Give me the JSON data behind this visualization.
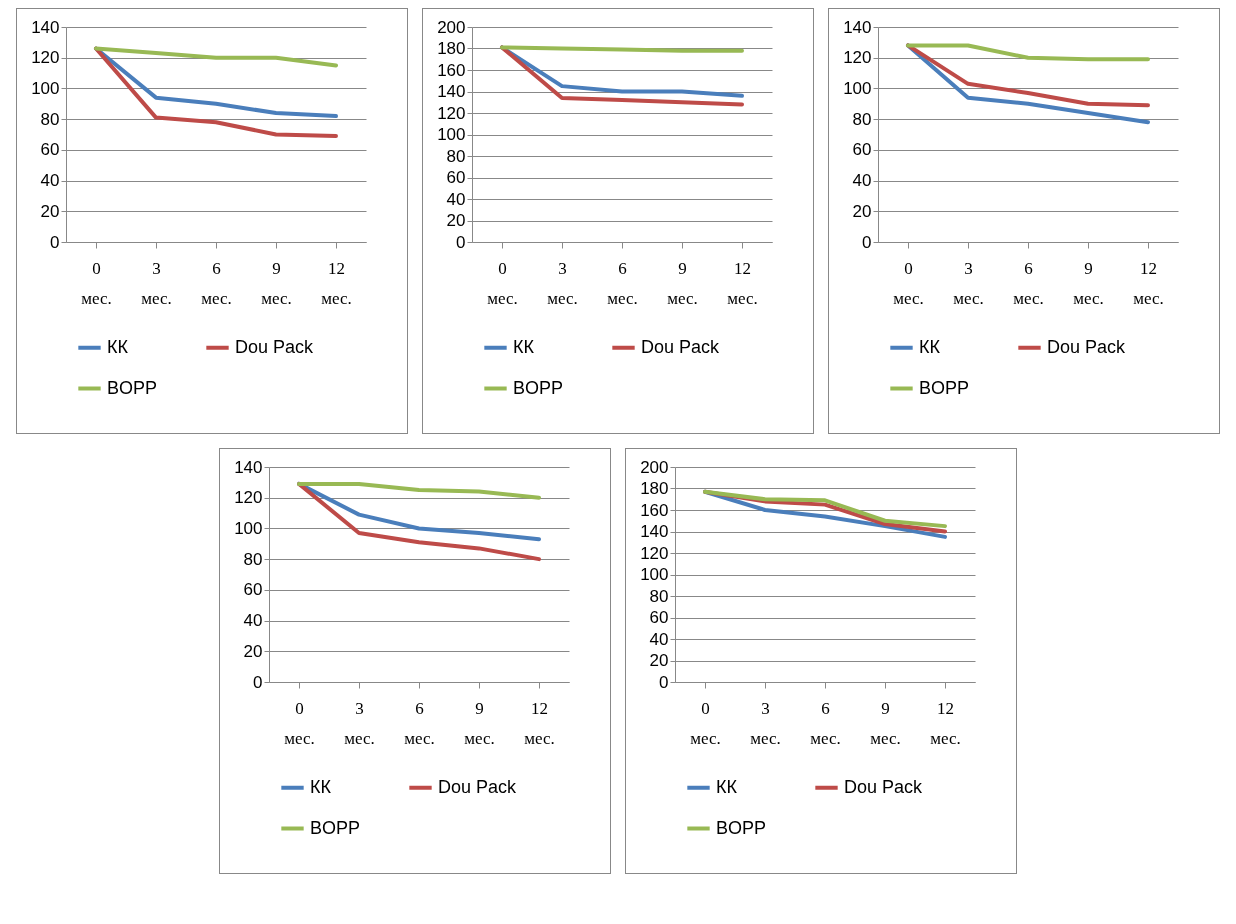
{
  "chart_data": [
    {
      "type": "line",
      "categories": [
        "0 мес.",
        "3 мес.",
        "6 мес.",
        "9 мес.",
        "12 мес."
      ],
      "ylim": [
        0,
        140
      ],
      "yticks": [
        0,
        20,
        40,
        60,
        80,
        100,
        120,
        140
      ],
      "grid": "y",
      "legend": "bottom",
      "series": [
        {
          "name": "КК",
          "color": "#4a7ebb",
          "values": [
            126,
            94,
            90,
            84,
            82
          ]
        },
        {
          "name": "Dou Pack",
          "color": "#be4b48",
          "values": [
            126,
            81,
            78,
            70,
            69
          ]
        },
        {
          "name": "BOPP",
          "color": "#98b954",
          "values": [
            126,
            123,
            120,
            120,
            115
          ]
        }
      ]
    },
    {
      "type": "line",
      "categories": [
        "0 мес.",
        "3 мес.",
        "6 мес.",
        "9 мес.",
        "12 мес."
      ],
      "ylim": [
        0,
        200
      ],
      "yticks": [
        0,
        20,
        40,
        60,
        80,
        100,
        120,
        140,
        160,
        180,
        200
      ],
      "grid": "y",
      "legend": "bottom",
      "series": [
        {
          "name": "КК",
          "color": "#4a7ebb",
          "values": [
            181,
            145,
            140,
            140,
            136
          ]
        },
        {
          "name": "Dou Pack",
          "color": "#be4b48",
          "values": [
            181,
            134,
            132,
            130,
            128
          ]
        },
        {
          "name": "BOPP",
          "color": "#98b954",
          "values": [
            181,
            180,
            179,
            178,
            178
          ]
        }
      ]
    },
    {
      "type": "line",
      "categories": [
        "0 мес.",
        "3 мес.",
        "6 мес.",
        "9 мес.",
        "12 мес."
      ],
      "ylim": [
        0,
        140
      ],
      "yticks": [
        0,
        20,
        40,
        60,
        80,
        100,
        120,
        140
      ],
      "grid": "y",
      "legend": "bottom",
      "series": [
        {
          "name": "КК",
          "color": "#4a7ebb",
          "values": [
            128,
            94,
            90,
            84,
            78
          ]
        },
        {
          "name": "Dou Pack",
          "color": "#be4b48",
          "values": [
            128,
            103,
            97,
            90,
            89
          ]
        },
        {
          "name": "BOPP",
          "color": "#98b954",
          "values": [
            128,
            128,
            120,
            119,
            119
          ]
        }
      ]
    },
    {
      "type": "line",
      "categories": [
        "0 мес.",
        "3 мес.",
        "6 мес.",
        "9 мес.",
        "12 мес."
      ],
      "ylim": [
        0,
        140
      ],
      "yticks": [
        0,
        20,
        40,
        60,
        80,
        100,
        120,
        140
      ],
      "grid": "y",
      "legend": "bottom",
      "series": [
        {
          "name": "КК",
          "color": "#4a7ebb",
          "values": [
            129,
            109,
            100,
            97,
            93
          ]
        },
        {
          "name": "Dou Pack",
          "color": "#be4b48",
          "values": [
            129,
            97,
            91,
            87,
            80
          ]
        },
        {
          "name": "BOPP",
          "color": "#98b954",
          "values": [
            129,
            129,
            125,
            124,
            120
          ]
        }
      ]
    },
    {
      "type": "line",
      "categories": [
        "0 мес.",
        "3 мес.",
        "6 мес.",
        "9 мес.",
        "12 мес."
      ],
      "ylim": [
        0,
        200
      ],
      "yticks": [
        0,
        20,
        40,
        60,
        80,
        100,
        120,
        140,
        160,
        180,
        200
      ],
      "grid": "y",
      "legend": "bottom",
      "series": [
        {
          "name": "КК",
          "color": "#4a7ebb",
          "values": [
            177,
            160,
            154,
            145,
            135
          ]
        },
        {
          "name": "Dou Pack",
          "color": "#be4b48",
          "values": [
            177,
            168,
            165,
            147,
            140
          ]
        },
        {
          "name": "BOPP",
          "color": "#98b954",
          "values": [
            177,
            170,
            169,
            150,
            145
          ]
        }
      ]
    }
  ]
}
